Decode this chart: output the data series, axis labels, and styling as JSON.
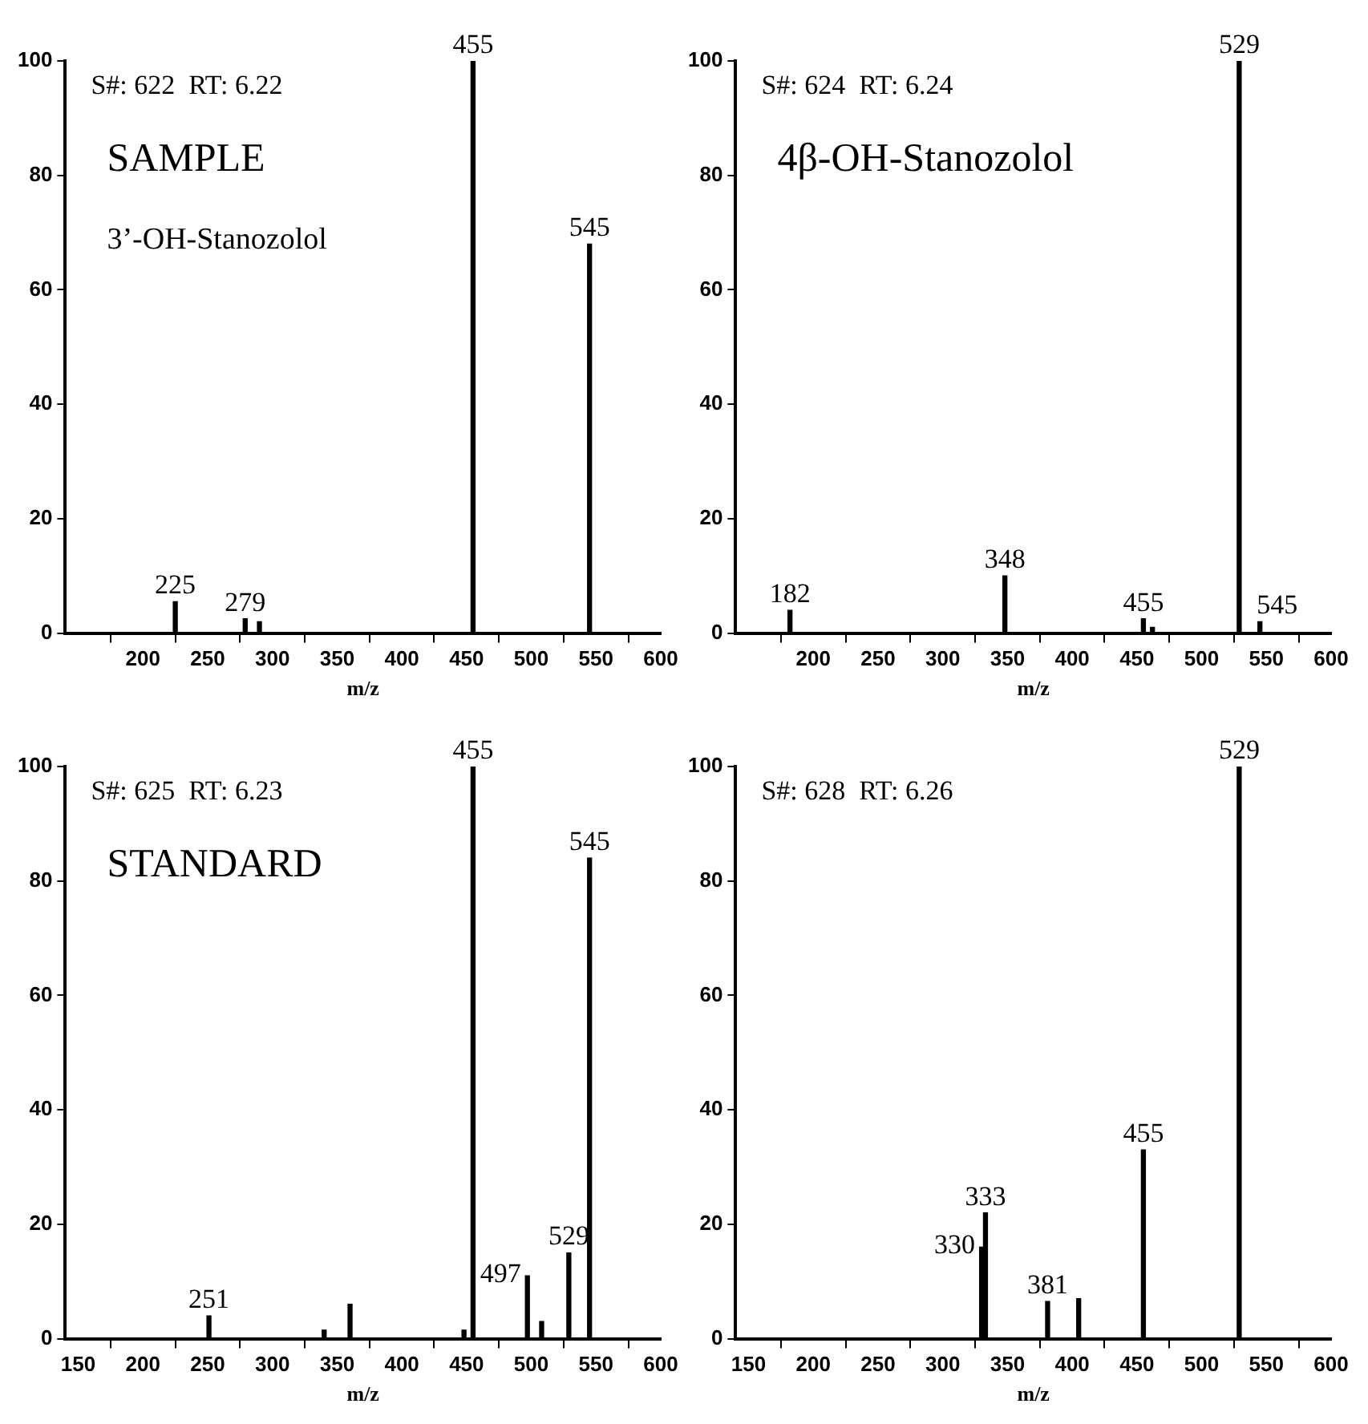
{
  "chart_data": [
    {
      "type": "bar",
      "xlabel": "m/z",
      "x": [
        225,
        279,
        290,
        455,
        545
      ],
      "values": [
        5.5,
        2.5,
        2,
        100,
        68
      ],
      "color": "#000000",
      "xlim": [
        140,
        600
      ],
      "ylim": [
        0,
        100
      ],
      "xticks": [
        200,
        250,
        300,
        350,
        400,
        450,
        500,
        550,
        600
      ],
      "yticks": [
        0,
        20,
        40,
        60,
        80,
        100
      ],
      "grid": false,
      "annotations": [
        "S#: 622  RT: 6.22",
        "SAMPLE",
        "3’-OH-Stanozolol",
        {
          "text": "225",
          "x": 225,
          "y": 5.5
        },
        {
          "text": "279",
          "x": 279,
          "y": 2.5
        },
        {
          "text": "455",
          "x": 455,
          "y": 100
        },
        {
          "text": "545",
          "x": 545,
          "y": 68
        }
      ]
    },
    {
      "type": "bar",
      "xlabel": "m/z",
      "x": [
        182,
        348,
        455,
        462,
        529,
        545
      ],
      "values": [
        4,
        10,
        2.5,
        1,
        100,
        2
      ],
      "color": "#000000",
      "xlim": [
        140,
        600
      ],
      "ylim": [
        0,
        100
      ],
      "xticks": [
        200,
        250,
        300,
        350,
        400,
        450,
        500,
        550,
        600
      ],
      "yticks": [
        0,
        20,
        40,
        60,
        80,
        100
      ],
      "grid": false,
      "annotations": [
        "S#: 624  RT: 6.24",
        "4β-OH-Stanozolol",
        {
          "text": "182",
          "x": 182,
          "y": 4
        },
        {
          "text": "348",
          "x": 348,
          "y": 10
        },
        {
          "text": "455",
          "x": 455,
          "y": 2.5
        },
        {
          "text": "529",
          "x": 529,
          "y": 100
        },
        {
          "text": "545",
          "x": 545,
          "y": 2
        }
      ]
    },
    {
      "type": "bar",
      "xlabel": "m/z",
      "x": [
        251,
        340,
        360,
        448,
        455,
        497,
        508,
        529,
        545
      ],
      "values": [
        4,
        1.5,
        6,
        1.5,
        100,
        11,
        3,
        15,
        84
      ],
      "color": "#000000",
      "xlim": [
        140,
        600
      ],
      "ylim": [
        0,
        100
      ],
      "xticks": [
        150,
        200,
        250,
        300,
        350,
        400,
        450,
        500,
        550,
        600
      ],
      "yticks": [
        0,
        20,
        40,
        60,
        80,
        100
      ],
      "grid": false,
      "annotations": [
        "S#: 625  RT: 6.23",
        "STANDARD",
        {
          "text": "251",
          "x": 251,
          "y": 4
        },
        {
          "text": "455",
          "x": 455,
          "y": 100
        },
        {
          "text": "497",
          "x": 497,
          "y": 11
        },
        {
          "text": "529",
          "x": 529,
          "y": 15
        },
        {
          "text": "545",
          "x": 545,
          "y": 84
        }
      ]
    },
    {
      "type": "bar",
      "xlabel": "m/z",
      "x": [
        330,
        333,
        381,
        405,
        455,
        529
      ],
      "values": [
        16,
        22,
        6.5,
        7,
        33,
        100
      ],
      "color": "#000000",
      "xlim": [
        140,
        600
      ],
      "ylim": [
        0,
        100
      ],
      "xticks": [
        150,
        200,
        250,
        300,
        350,
        400,
        450,
        500,
        550,
        600
      ],
      "yticks": [
        0,
        20,
        40,
        60,
        80,
        100
      ],
      "grid": false,
      "annotations": [
        "S#: 628  RT: 6.26",
        {
          "text": "330",
          "x": 330,
          "y": 16
        },
        {
          "text": "333",
          "x": 333,
          "y": 22
        },
        {
          "text": "381",
          "x": 381,
          "y": 6.5
        },
        {
          "text": "455",
          "x": 455,
          "y": 33
        },
        {
          "text": "529",
          "x": 529,
          "y": 100
        }
      ]
    }
  ]
}
